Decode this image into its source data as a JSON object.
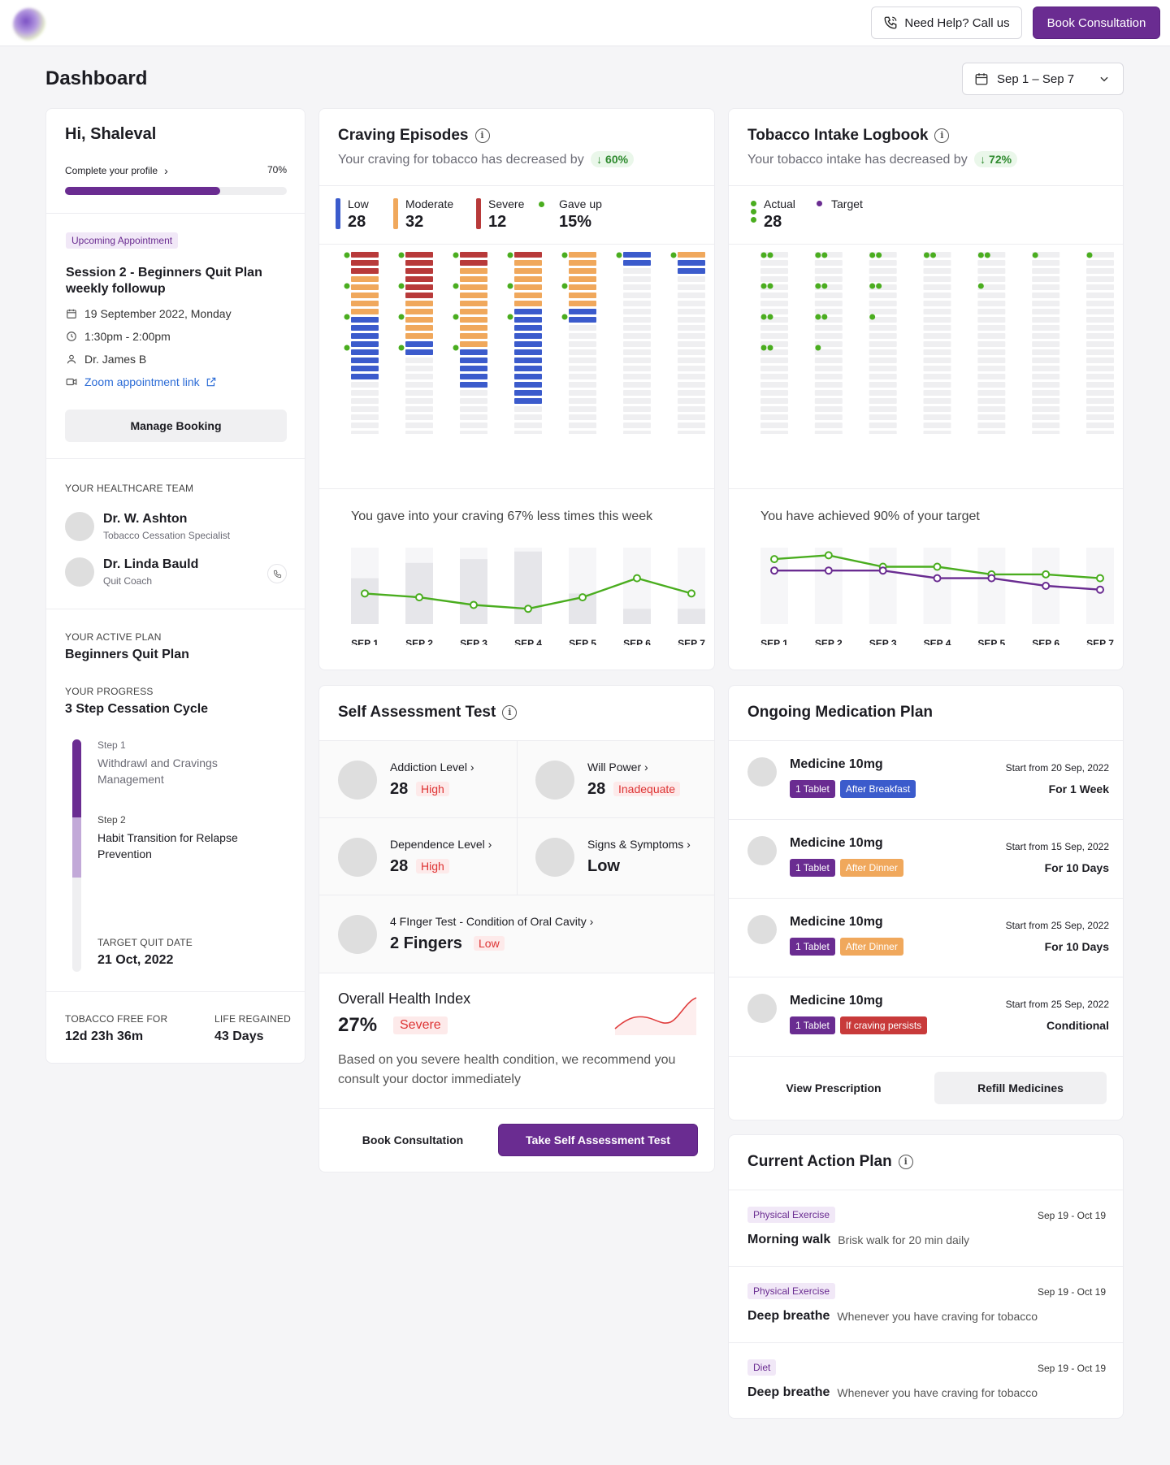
{
  "header": {
    "help_label": "Need Help? Call us",
    "book_label": "Book Consultation"
  },
  "page": {
    "title": "Dashboard",
    "date_range": "Sep 1 – Sep 7"
  },
  "profile": {
    "greeting": "Hi, Shaleval",
    "complete_label": "Complete your profile",
    "progress_text": "70%",
    "progress": 0.7,
    "appointment_badge": "Upcoming Appointment",
    "session_title": "Session 2 - Beginners Quit Plan weekly followup",
    "date": "19 September 2022, Monday",
    "time": "1:30pm - 2:00pm",
    "doctor": "Dr. James B",
    "zoom_link": "Zoom appointment link",
    "manage_label": "Manage Booking",
    "team_label": "YOUR HEALTHCARE TEAM",
    "team": [
      {
        "name": "Dr. W. Ashton",
        "role": "Tobacco Cessation Specialist"
      },
      {
        "name": "Dr. Linda Bauld",
        "role": "Quit Coach"
      }
    ],
    "plan_label": "YOUR ACTIVE PLAN",
    "plan_name": "Beginners Quit Plan",
    "progress_label": "YOUR PROGRESS",
    "progress_name": "3 Step Cessation Cycle",
    "steps": [
      {
        "step": "Step 1",
        "name": "Withdrawl and Cravings Management"
      },
      {
        "step": "Step 2",
        "name": "Habit Transition for Relapse Prevention"
      }
    ],
    "target_label": "TARGET QUIT DATE",
    "target_date": "21 Oct, 2022",
    "free_label": "TOBACCO FREE FOR",
    "free_value": "12d 23h 36m",
    "regained_label": "LIFE REGAINED",
    "regained_value": "43 Days"
  },
  "craving": {
    "title": "Craving Episodes",
    "subtitle": "Your craving for tobacco has decreased by",
    "change": "60%",
    "legend": [
      {
        "label": "Low",
        "value": "28",
        "color": "#3b5bcc"
      },
      {
        "label": "Moderate",
        "value": "32",
        "color": "#f0a85c"
      },
      {
        "label": "Severe",
        "value": "12",
        "color": "#b83a3a"
      },
      {
        "label": "Gave up",
        "value": "15%",
        "color": "#4aad1f"
      }
    ],
    "summary": "You gave into your craving 67% less times this week"
  },
  "tobacco": {
    "title": "Tobacco Intake Logbook",
    "subtitle": "Your tobacco intake has decreased by",
    "change": "72%",
    "legend": [
      {
        "label": "Actual",
        "value": "28",
        "color": "#4aad1f"
      },
      {
        "label": "Target",
        "value": "",
        "color": "#6a2c91"
      }
    ],
    "summary": "You have achieved 90% of your target"
  },
  "chart_data": [
    {
      "type": "bar",
      "title": "Craving Episodes",
      "categories": [
        "SEP 1",
        "SEP 2",
        "SEP 3",
        "SEP 4",
        "SEP 5",
        "SEP 6",
        "SEP 7"
      ],
      "series": [
        {
          "name": "Severe",
          "values": [
            3,
            6,
            2,
            1,
            0,
            0,
            0
          ]
        },
        {
          "name": "Moderate",
          "values": [
            5,
            5,
            10,
            6,
            7,
            0,
            1
          ]
        },
        {
          "name": "Low",
          "values": [
            8,
            2,
            5,
            12,
            2,
            2,
            2
          ]
        },
        {
          "name": "Gave up",
          "values": [
            4,
            4,
            4,
            3,
            3,
            1,
            1
          ]
        }
      ],
      "ylim": [
        0,
        24
      ]
    },
    {
      "type": "line",
      "title": "Craving gave-in trend",
      "categories": [
        "SEP 1",
        "SEP 2",
        "SEP 3",
        "SEP 4",
        "SEP 5",
        "SEP 6",
        "SEP 7"
      ],
      "series": [
        {
          "name": "Gave in",
          "values": [
            4,
            3.5,
            2.5,
            2,
            3.5,
            6,
            4
          ]
        }
      ],
      "bars": [
        6,
        8,
        8.5,
        9.5,
        4,
        2,
        2
      ],
      "ylim": [
        0,
        10
      ]
    },
    {
      "type": "scatter",
      "title": "Tobacco Intake Logbook",
      "categories": [
        "SEP 1",
        "SEP 2",
        "SEP 3",
        "SEP 4",
        "SEP 5",
        "SEP 6",
        "SEP 7"
      ],
      "series": [
        {
          "name": "Actual",
          "values": [
            8,
            7,
            5,
            2,
            3,
            1,
            1
          ]
        }
      ],
      "ylim": [
        0,
        24
      ]
    },
    {
      "type": "line",
      "title": "Target achievement",
      "categories": [
        "SEP 1",
        "SEP 2",
        "SEP 3",
        "SEP 4",
        "SEP 5",
        "SEP 6",
        "SEP 7"
      ],
      "series": [
        {
          "name": "Actual",
          "values": [
            8.5,
            9,
            7.5,
            7.5,
            6.5,
            6.5,
            6
          ]
        },
        {
          "name": "Target",
          "values": [
            7,
            7,
            7,
            6,
            6,
            5,
            4.5
          ]
        }
      ],
      "ylim": [
        0,
        10
      ]
    }
  ],
  "self_assessment": {
    "title": "Self Assessment Test",
    "items": [
      {
        "label": "Addiction Level",
        "value": "28",
        "status": "High"
      },
      {
        "label": "Will Power",
        "value": "28",
        "status": "Inadequate"
      },
      {
        "label": "Dependence Level",
        "value": "28",
        "status": "High"
      },
      {
        "label": "Signs & Symptoms",
        "value": "Low",
        "status": ""
      },
      {
        "label": "4 FInger Test - Condition of Oral Cavity",
        "value": "2 Fingers",
        "status": "Low"
      }
    ],
    "health_title": "Overall Health Index",
    "health_value": "27%",
    "health_status": "Severe",
    "health_note": "Based on you severe health condition, we recommend you consult your doctor immediately",
    "book_label": "Book Consultation",
    "take_label": "Take Self Assessment Test"
  },
  "medication": {
    "title": "Ongoing Medication Plan",
    "items": [
      {
        "name": "Medicine 10mg",
        "dose": "1 Tablet",
        "when": "After Breakfast",
        "when_color": "#3b5bcc",
        "start": "Start from 20 Sep, 2022",
        "duration": "For 1 Week"
      },
      {
        "name": "Medicine 10mg",
        "dose": "1 Tablet",
        "when": "After Dinner",
        "when_color": "#f0a85c",
        "start": "Start from 15 Sep, 2022",
        "duration": "For 10 Days"
      },
      {
        "name": "Medicine 10mg",
        "dose": "1 Tablet",
        "when": "After Dinner",
        "when_color": "#f0a85c",
        "start": "Start from 25 Sep, 2022",
        "duration": "For 10 Days"
      },
      {
        "name": "Medicine 10mg",
        "dose": "1 Tablet",
        "when": "If craving persists",
        "when_color": "#c83a3a",
        "start": "Start from 25 Sep, 2022",
        "duration": "Conditional"
      }
    ],
    "view_label": "View Prescription",
    "refill_label": "Refill Medicines"
  },
  "action_plan": {
    "title": "Current Action Plan",
    "items": [
      {
        "tag": "Physical Exercise",
        "dates": "Sep 19 - Oct 19",
        "name": "Morning walk",
        "desc": "Brisk walk for 20 min daily"
      },
      {
        "tag": "Physical Exercise",
        "dates": "Sep 19 - Oct 19",
        "name": "Deep breathe",
        "desc": "Whenever you have craving for tobacco"
      },
      {
        "tag": "Diet",
        "dates": "Sep 19 - Oct 19",
        "name": "Deep breathe",
        "desc": "Whenever you have craving for tobacco"
      }
    ]
  },
  "icons": {
    "phone": "phone-icon",
    "calendar": "calendar-icon",
    "chevron": "chevron-down-icon",
    "info": "info-icon"
  }
}
